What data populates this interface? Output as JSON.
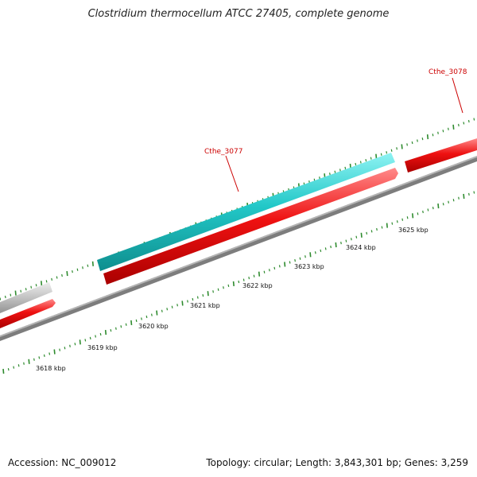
{
  "title": "Clostridium thermocellum ATCC 27405, complete genome",
  "accession_text": "Accession: NC_009012",
  "summary_text": "Topology: circular; Length: 3,843,301 bp; Genes: 3,259",
  "colors": {
    "tick": "#2e8b2e",
    "backbone": "#7d7d7d",
    "gene_label": "#cc0000",
    "forward_gene": "#22c8c8",
    "reverse_gene": "#ee1111",
    "other_gene": "#c2c2c2"
  },
  "scale_labels": [
    "3618 kbp",
    "3619 kbp",
    "3620 kbp",
    "3621 kbp",
    "3622 kbp",
    "3623 kbp",
    "3624 kbp",
    "3625 kbp"
  ],
  "genes": [
    {
      "label": "Cthe_3077",
      "color_key": "forward_gene"
    },
    {
      "label": "Cthe_3078",
      "color_key": "reverse_gene"
    }
  ],
  "features": [
    {
      "kind": "other_gene"
    },
    {
      "kind": "reverse_gene"
    },
    {
      "kind": "forward_gene"
    },
    {
      "kind": "reverse_gene"
    },
    {
      "kind": "reverse_gene"
    }
  ]
}
